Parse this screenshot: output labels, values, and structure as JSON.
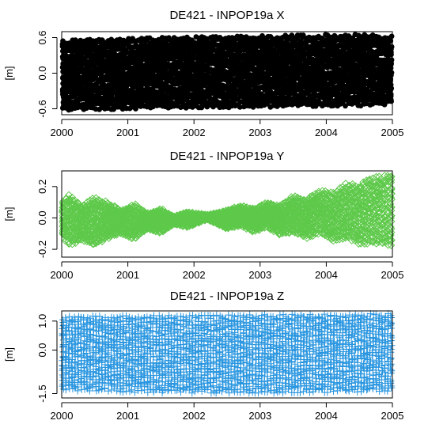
{
  "chart_data": [
    {
      "type": "scatter",
      "title": "DE421 - INPOP19a  X",
      "xlabel": "",
      "ylabel": "[m]",
      "xlim": [
        2000,
        2005
      ],
      "ylim": [
        -0.7,
        0.7
      ],
      "xticks": [
        2000,
        2001,
        2002,
        2003,
        2004,
        2005
      ],
      "yticks": [
        -0.6,
        0.0,
        0.6
      ],
      "ytick_labels": [
        "-0.6",
        "0.0",
        "0.6"
      ],
      "marker": "filled-circle",
      "color": "#000000",
      "grid": false,
      "series": [
        {
          "x": [
            2000.0,
            2000.25,
            2000.5,
            2000.75,
            2001.0,
            2001.25,
            2001.5,
            2001.75,
            2002.0,
            2002.25,
            2002.5,
            2002.75,
            2003.0,
            2003.25,
            2003.5,
            2003.75,
            2004.0,
            2004.25,
            2004.5,
            2004.75,
            2005.0
          ],
          "upper": [
            0.55,
            0.56,
            0.57,
            0.58,
            0.58,
            0.59,
            0.6,
            0.6,
            0.61,
            0.61,
            0.62,
            0.62,
            0.63,
            0.63,
            0.64,
            0.64,
            0.65,
            0.65,
            0.65,
            0.64,
            0.62
          ],
          "lower": [
            -0.62,
            -0.62,
            -0.61,
            -0.61,
            -0.6,
            -0.6,
            -0.59,
            -0.59,
            -0.58,
            -0.58,
            -0.58,
            -0.57,
            -0.57,
            -0.57,
            -0.56,
            -0.56,
            -0.55,
            -0.55,
            -0.55,
            -0.54,
            -0.52
          ]
        }
      ]
    },
    {
      "type": "scatter",
      "title": "DE421 - INPOP19a  Y",
      "xlabel": "",
      "ylabel": "[m]",
      "xlim": [
        2000,
        2005
      ],
      "ylim": [
        -0.25,
        0.3
      ],
      "xticks": [
        2000,
        2001,
        2002,
        2003,
        2004,
        2005
      ],
      "yticks": [
        -0.2,
        0.0,
        0.2
      ],
      "ytick_labels": [
        "-0.2",
        "0.0",
        "0.2"
      ],
      "marker": "open-diamond",
      "color": "#5ec94a",
      "grid": false,
      "series": [
        {
          "x": [
            2000.0,
            2000.1,
            2000.3,
            2000.5,
            2000.7,
            2000.9,
            2001.1,
            2001.3,
            2001.5,
            2001.7,
            2001.9,
            2002.2,
            2002.5,
            2002.7,
            2002.9,
            2003.1,
            2003.3,
            2003.5,
            2003.7,
            2003.9,
            2004.1,
            2004.3,
            2004.5,
            2004.7,
            2005.0
          ],
          "upper": [
            0.1,
            0.15,
            0.08,
            0.13,
            0.1,
            0.05,
            0.09,
            0.03,
            0.06,
            0.01,
            0.04,
            0.02,
            0.05,
            0.08,
            0.06,
            0.1,
            0.08,
            0.14,
            0.12,
            0.18,
            0.16,
            0.22,
            0.21,
            0.26,
            0.28
          ],
          "lower": [
            -0.1,
            -0.18,
            -0.14,
            -0.18,
            -0.13,
            -0.1,
            -0.14,
            -0.07,
            -0.1,
            -0.04,
            -0.06,
            -0.01,
            -0.07,
            -0.05,
            -0.09,
            -0.06,
            -0.11,
            -0.09,
            -0.13,
            -0.1,
            -0.15,
            -0.13,
            -0.17,
            -0.16,
            -0.18
          ]
        }
      ]
    },
    {
      "type": "scatter",
      "title": "DE421 - INPOP19a  Z",
      "xlabel": "",
      "ylabel": "[m]",
      "xlim": [
        2000,
        2005
      ],
      "ylim": [
        -1.65,
        1.35
      ],
      "xticks": [
        2000,
        2001,
        2002,
        2003,
        2004,
        2005
      ],
      "yticks": [
        -1.5,
        0.0,
        1.0
      ],
      "ytick_labels": [
        "-1.5",
        "0.0",
        "1.0"
      ],
      "marker": "plus",
      "color": "#2a96e0",
      "grid": false,
      "series": [
        {
          "x": [
            2000.0,
            2000.25,
            2000.5,
            2000.75,
            2001.0,
            2001.25,
            2001.5,
            2001.75,
            2002.0,
            2002.25,
            2002.5,
            2002.75,
            2003.0,
            2003.25,
            2003.5,
            2003.75,
            2004.0,
            2004.25,
            2004.5,
            2004.75,
            2005.0
          ],
          "upper": [
            1.15,
            1.16,
            1.17,
            1.17,
            1.18,
            1.18,
            1.19,
            1.19,
            1.2,
            1.2,
            1.21,
            1.21,
            1.22,
            1.22,
            1.23,
            1.23,
            1.24,
            1.24,
            1.25,
            1.25,
            1.25
          ],
          "lower": [
            -1.38,
            -1.4,
            -1.42,
            -1.43,
            -1.45,
            -1.46,
            -1.47,
            -1.47,
            -1.48,
            -1.48,
            -1.48,
            -1.48,
            -1.48,
            -1.48,
            -1.47,
            -1.47,
            -1.46,
            -1.45,
            -1.44,
            -1.43,
            -1.42
          ]
        }
      ]
    }
  ]
}
